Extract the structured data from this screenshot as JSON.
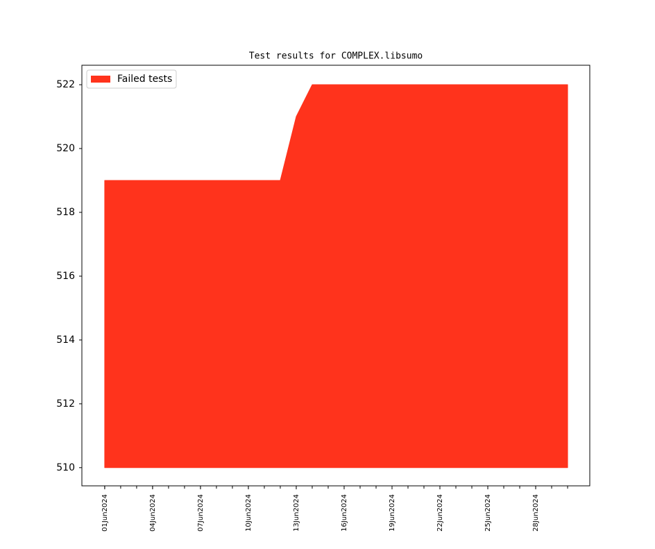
{
  "chart_data": {
    "type": "area",
    "title": "Test results for COMPLEX.libsumo",
    "x": [
      "2024-06-01",
      "2024-06-02",
      "2024-06-03",
      "2024-06-04",
      "2024-06-05",
      "2024-06-06",
      "2024-06-07",
      "2024-06-08",
      "2024-06-09",
      "2024-06-10",
      "2024-06-11",
      "2024-06-12",
      "2024-06-13",
      "2024-06-14",
      "2024-06-15",
      "2024-06-16",
      "2024-06-17",
      "2024-06-18",
      "2024-06-19",
      "2024-06-20",
      "2024-06-21",
      "2024-06-22",
      "2024-06-23",
      "2024-06-24",
      "2024-06-25",
      "2024-06-26",
      "2024-06-27",
      "2024-06-28",
      "2024-06-29",
      "2024-06-30"
    ],
    "series": [
      {
        "name": "Failed tests",
        "color": "#ff331c",
        "values": [
          519,
          519,
          519,
          519,
          519,
          519,
          519,
          519,
          519,
          519,
          519,
          519,
          521,
          522,
          522,
          522,
          522,
          522,
          522,
          522,
          522,
          522,
          522,
          522,
          522,
          522,
          522,
          522,
          522,
          522
        ]
      }
    ],
    "area_base": 510,
    "xlim": [
      "2024-05-30T13:40",
      "2024-07-01T09:20"
    ],
    "xticks": [
      {
        "value": "2024-06-01",
        "label": "01Jun2024"
      },
      {
        "value": "2024-06-04",
        "label": "04Jun2024"
      },
      {
        "value": "2024-06-07",
        "label": "07Jun2024"
      },
      {
        "value": "2024-06-10",
        "label": "10Jun2024"
      },
      {
        "value": "2024-06-13",
        "label": "13Jun2024"
      },
      {
        "value": "2024-06-16",
        "label": "16Jun2024"
      },
      {
        "value": "2024-06-19",
        "label": "19Jun2024"
      },
      {
        "value": "2024-06-22",
        "label": "22Jun2024"
      },
      {
        "value": "2024-06-25",
        "label": "25Jun2024"
      },
      {
        "value": "2024-06-28",
        "label": "28Jun2024"
      }
    ],
    "ylim": [
      509.43,
      522.61
    ],
    "yticks": [
      510,
      512,
      514,
      516,
      518,
      520,
      522
    ],
    "legend": "upper left"
  }
}
